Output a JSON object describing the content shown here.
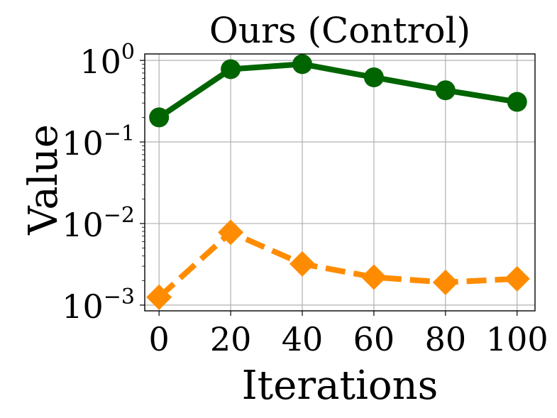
{
  "chart_data": {
    "type": "line",
    "title": "Ours (Control)",
    "xlabel": "Iterations",
    "ylabel": "Value",
    "yscale": "log",
    "x": [
      0,
      20,
      40,
      60,
      80,
      100
    ],
    "xticks": [
      "0",
      "20",
      "40",
      "60",
      "80",
      "100"
    ],
    "yticks": [
      {
        "base": "10",
        "exp": "−3",
        "value": 0.001
      },
      {
        "base": "10",
        "exp": "−2",
        "value": 0.01
      },
      {
        "base": "10",
        "exp": "−1",
        "value": 0.1
      },
      {
        "base": "10",
        "exp": "0",
        "value": 1
      }
    ],
    "xlim": [
      -4,
      105
    ],
    "ylim": [
      0.00085,
      1.2
    ],
    "grid": true,
    "series": [
      {
        "values": [
          0.2,
          0.78,
          0.9,
          0.62,
          0.43,
          0.31
        ],
        "color": "#006400",
        "linestyle": "solid",
        "marker": "circle"
      },
      {
        "values": [
          0.00125,
          0.0078,
          0.0032,
          0.0022,
          0.0019,
          0.0021
        ],
        "color": "#ff8c00",
        "linestyle": "dashed",
        "marker": "diamond"
      }
    ]
  }
}
